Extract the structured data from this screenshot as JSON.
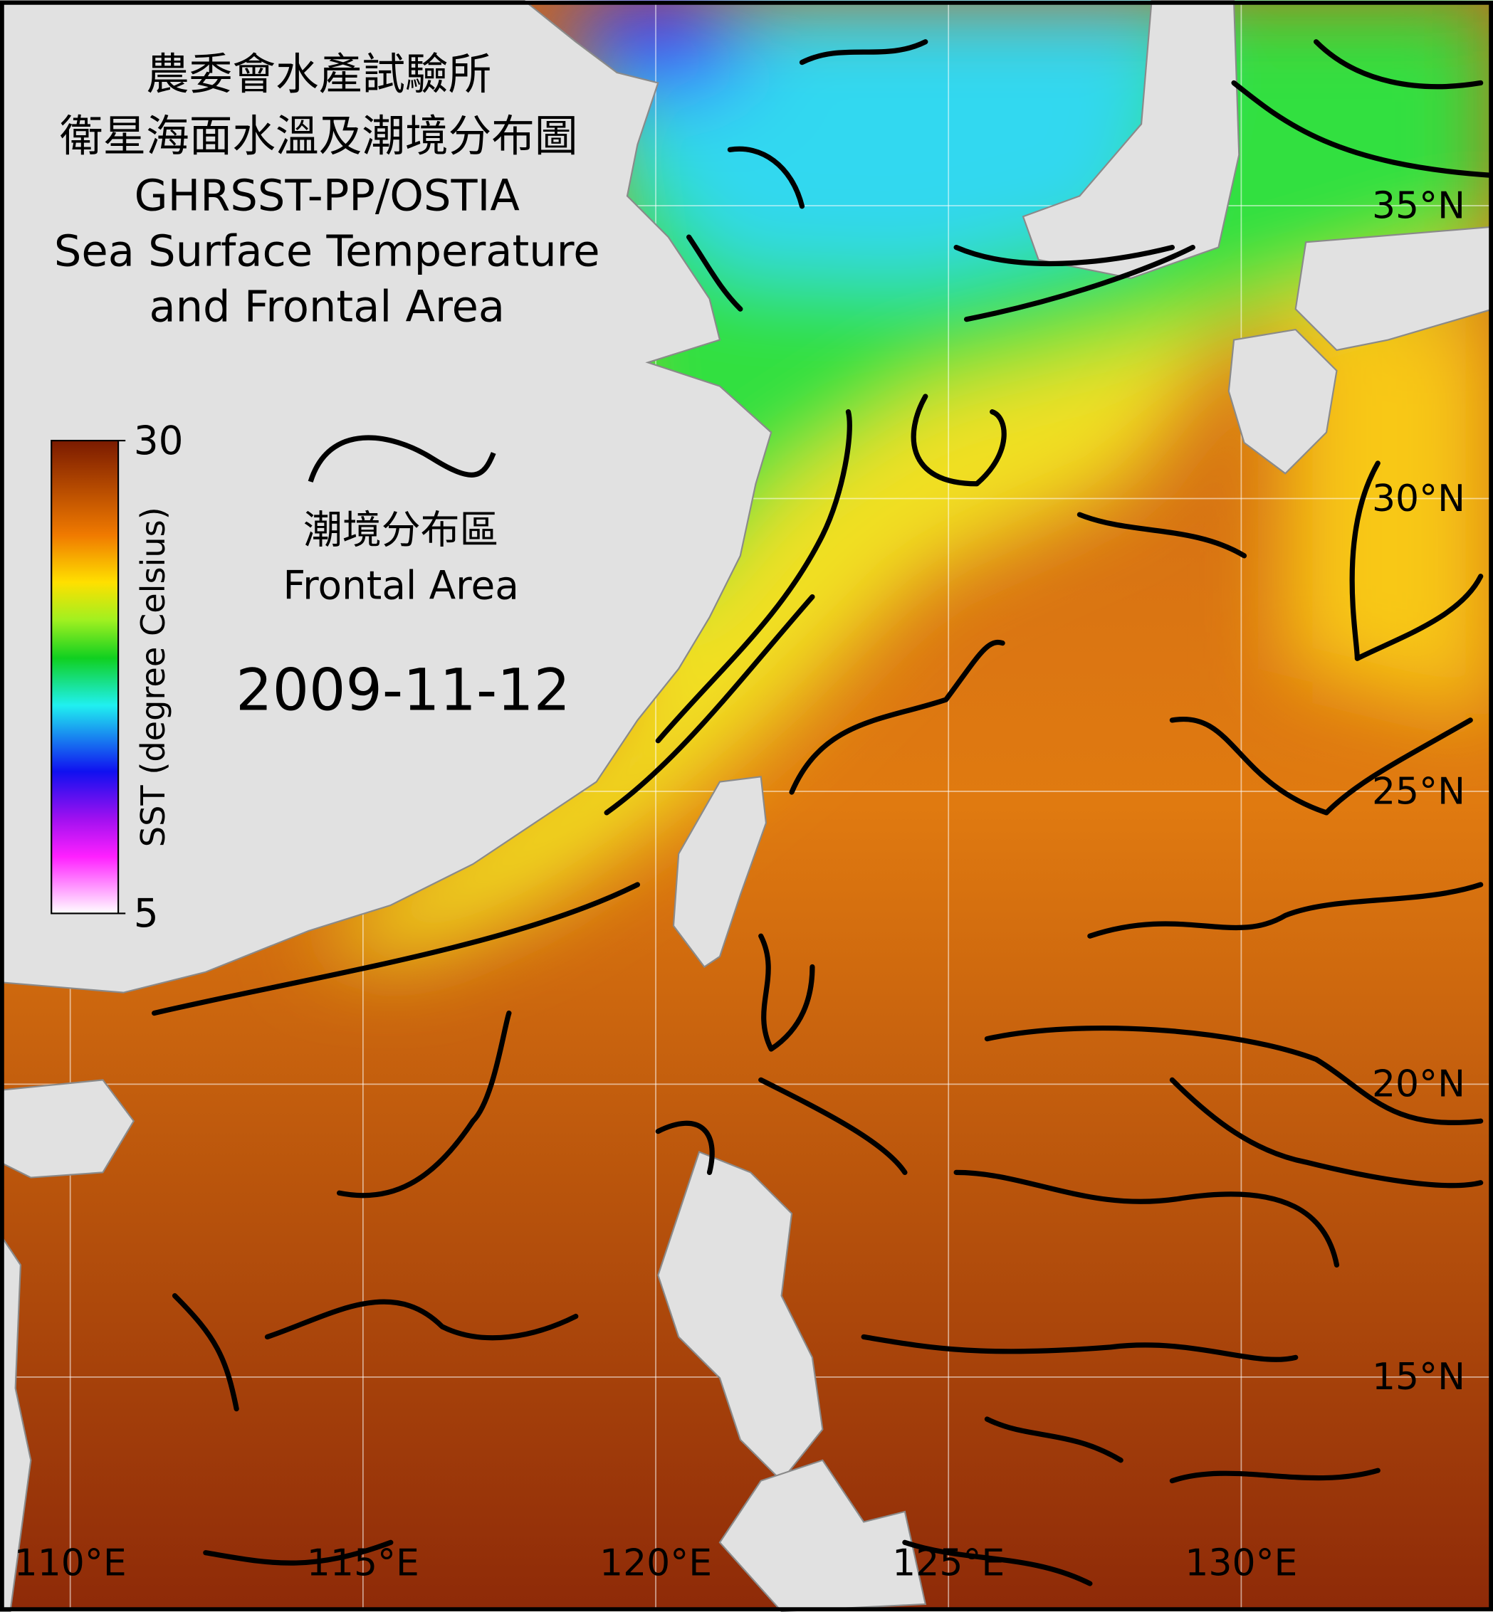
{
  "title": {
    "lines": [
      "農委會水產試驗所",
      "衛星海面水溫及潮境分布圖",
      "GHRSST-PP/OSTIA",
      "Sea Surface Temperature",
      "and Frontal Area"
    ]
  },
  "legend": {
    "label_zh": "潮境分布區",
    "label_en": "Frontal Area"
  },
  "date": "2009-11-12",
  "colorbar": {
    "label": "SST (degree Celsius)",
    "range": [
      5,
      30
    ],
    "ticks": [
      5,
      30
    ]
  },
  "map": {
    "lon_range": [
      108.8,
      134.3
    ],
    "lat_range": [
      11.0,
      38.5
    ],
    "lon_ticks": [
      {
        "value": 110,
        "label": "110°E"
      },
      {
        "value": 115,
        "label": "115°E"
      },
      {
        "value": 120,
        "label": "120°E"
      },
      {
        "value": 125,
        "label": "125°E"
      },
      {
        "value": 130,
        "label": "130°E"
      }
    ],
    "lat_ticks": [
      {
        "value": 35,
        "label": "35°N"
      },
      {
        "value": 30,
        "label": "30°N"
      },
      {
        "value": 25,
        "label": "25°N"
      },
      {
        "value": 20,
        "label": "20°N"
      },
      {
        "value": 15,
        "label": "15°N"
      }
    ]
  }
}
